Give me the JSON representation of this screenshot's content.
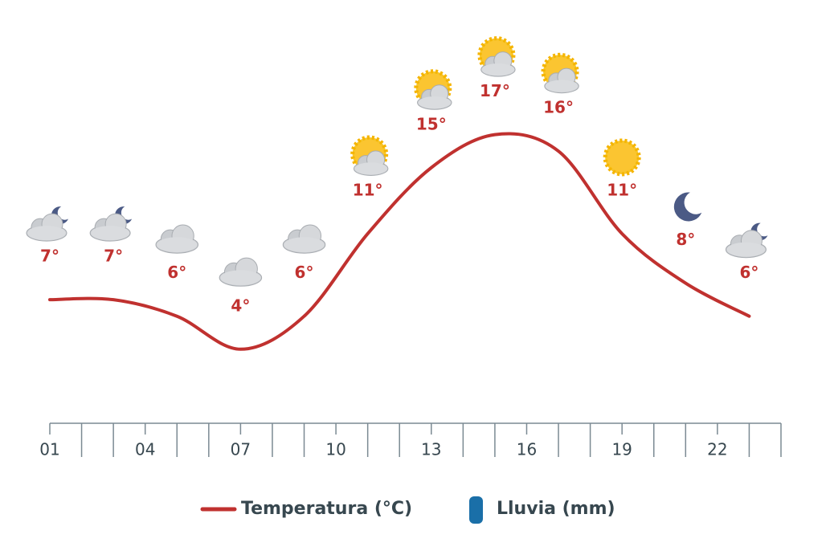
{
  "chart_data": {
    "type": "line",
    "x": [
      1,
      3,
      5,
      7,
      9,
      11,
      13,
      15,
      17,
      19,
      21,
      23
    ],
    "xlim": [
      1,
      24
    ],
    "xticks": [
      {
        "value": 1,
        "label": "01"
      },
      {
        "value": 4,
        "label": "04"
      },
      {
        "value": 7,
        "label": "07"
      },
      {
        "value": 10,
        "label": "10"
      },
      {
        "value": 13,
        "label": "13"
      },
      {
        "value": 16,
        "label": "16"
      },
      {
        "value": 19,
        "label": "19"
      },
      {
        "value": 22,
        "label": "22"
      }
    ],
    "xminorticks": [
      2,
      3,
      5,
      6,
      8,
      9,
      11,
      12,
      14,
      15,
      17,
      18,
      20,
      21,
      23,
      24
    ],
    "ylim": [
      0,
      20
    ],
    "series": [
      {
        "name": "Temperatura (°C)",
        "color": "#c0312f",
        "values": [
          7,
          7,
          6,
          4,
          6,
          11,
          15,
          17,
          16,
          11,
          8,
          6
        ],
        "value_labels": [
          "7°",
          "7°",
          "6°",
          "4°",
          "6°",
          "11°",
          "15°",
          "17°",
          "16°",
          "11°",
          "8°",
          "6°"
        ]
      },
      {
        "name": "Lluvia (mm)",
        "color": "#1a6fa8",
        "values": [
          0,
          0,
          0,
          0,
          0,
          0,
          0,
          0,
          0,
          0,
          0,
          0
        ]
      }
    ]
  }
}
